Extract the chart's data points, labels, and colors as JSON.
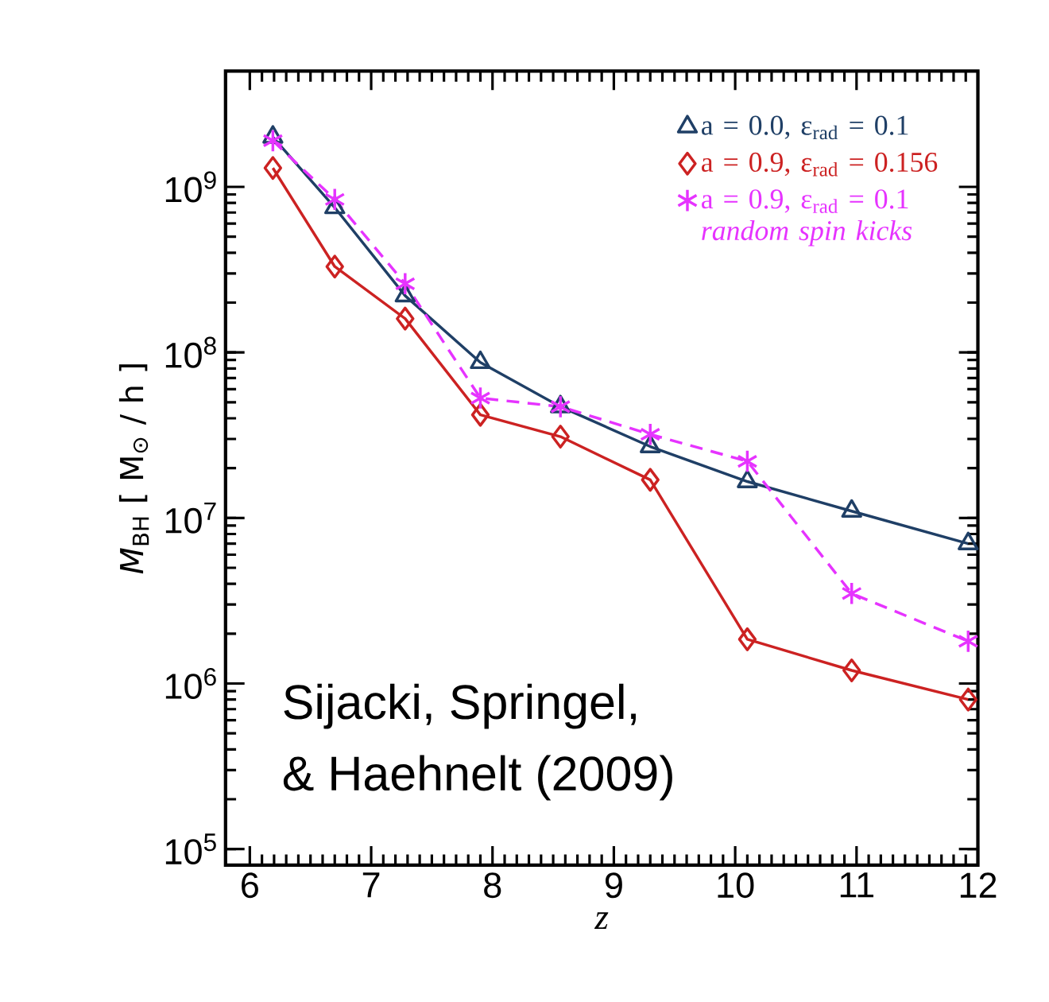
{
  "chart_data": {
    "type": "line",
    "xlabel": "z",
    "ylabel": "*M*$_{BH}$ [ M$_{⊙}$ / h ]",
    "x": [
      6.19,
      6.7,
      7.28,
      7.9,
      8.56,
      9.3,
      10.1,
      10.96,
      11.92
    ],
    "series": [
      {
        "name": "a = 0.0, ε$_{rad}$ = 0.1",
        "color": "#1f3f66",
        "marker": "triangle",
        "line_style": "solid",
        "values": [
          2000000000.0,
          750000000.0,
          220000000.0,
          87000000.0,
          47000000.0,
          27000000.0,
          16600000.0,
          11000000.0,
          7000000.0
        ]
      },
      {
        "name": "a = 0.9, ε$_{rad}$ = 0.156",
        "color": "#cc2222",
        "marker": "diamond",
        "line_style": "solid",
        "values": [
          1300000000.0,
          330000000.0,
          160000000.0,
          42000000.0,
          31000000.0,
          17000000.0,
          1850000.0,
          1200000.0,
          800000.0
        ]
      },
      {
        "name": "a = 0.9, ε$_{rad}$ = 0.1 *random spin kicks*",
        "color": "#e633ff",
        "marker": "cross",
        "line_style": "dashed",
        "values": [
          1900000000.0,
          840000000.0,
          260000000.0,
          53000000.0,
          47000000.0,
          32000000.0,
          22000000.0,
          3500000.0,
          1800000.0
        ]
      }
    ],
    "log": "y",
    "xlim": [
      5.8,
      12
    ],
    "ylim": [
      80000,
      5000000000.0
    ],
    "xticks": [
      6,
      7,
      8,
      9,
      10,
      11,
      12
    ],
    "yticks": [
      {
        "value": 100000,
        "label": "10$^{5}$"
      },
      {
        "value": 1000000,
        "label": "10$^{6}$"
      },
      {
        "value": 10000000,
        "label": "10$^{7}$"
      },
      {
        "value": 100000000,
        "label": "10$^{8}$"
      },
      {
        "value": 1000000000,
        "label": "10$^{9}$"
      }
    ],
    "grid": false,
    "legend": "top right",
    "annotations": [
      "Sijacki, Springel,",
      "& Haehnelt (2009)"
    ]
  }
}
